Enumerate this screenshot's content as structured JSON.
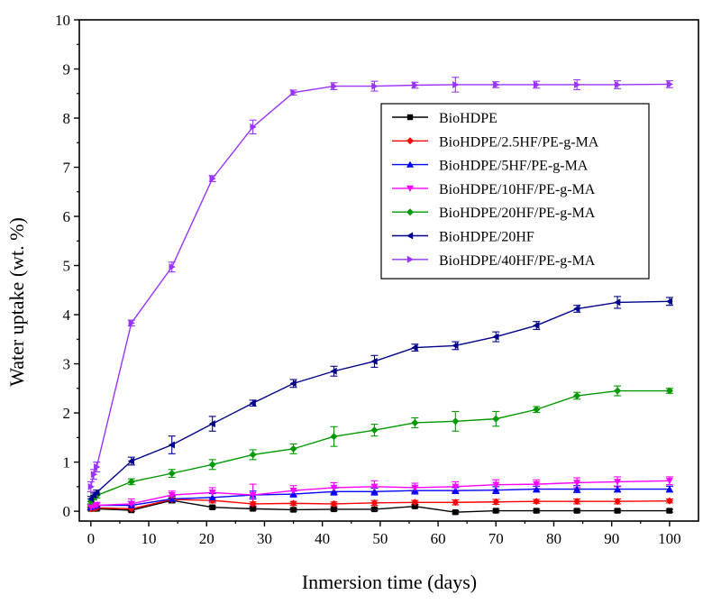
{
  "chart_data": {
    "type": "line",
    "xlabel": "Inmersion time (days)",
    "ylabel": "Water uptake (wt. %)",
    "xlim": [
      -2,
      105
    ],
    "ylim": [
      -0.2,
      10
    ],
    "xticks": [
      0,
      10,
      20,
      30,
      40,
      50,
      60,
      70,
      80,
      90,
      100
    ],
    "yticks": [
      0,
      1,
      2,
      3,
      4,
      5,
      6,
      7,
      8,
      9,
      10
    ],
    "legend_position": "center-right",
    "grid": false,
    "error_bars": true,
    "series": [
      {
        "name": "BioHDPE",
        "color": "#000000",
        "marker": "square",
        "x": [
          0,
          0.5,
          1,
          7,
          14,
          21,
          28,
          35,
          42,
          49,
          56,
          63,
          70,
          77,
          84,
          91,
          100
        ],
        "y": [
          0.05,
          0.05,
          0.05,
          0.02,
          0.22,
          0.08,
          0.05,
          0.03,
          0.04,
          0.04,
          0.1,
          -0.02,
          0.01,
          0.01,
          0.01,
          0.01,
          0.01
        ],
        "err": [
          0.03,
          0.03,
          0.03,
          0.03,
          0.05,
          0.03,
          0.03,
          0.03,
          0.03,
          0.03,
          0.03,
          0.03,
          0.03,
          0.03,
          0.03,
          0.03,
          0.03
        ]
      },
      {
        "name": "BioHDPE/2.5HF/PE-g-MA",
        "color": "#ff0000",
        "marker": "diamond",
        "x": [
          0,
          0.5,
          1,
          7,
          14,
          21,
          28,
          35,
          42,
          49,
          56,
          63,
          70,
          77,
          84,
          91,
          100
        ],
        "y": [
          0.05,
          0.06,
          0.07,
          0.05,
          0.24,
          0.22,
          0.15,
          0.16,
          0.15,
          0.17,
          0.18,
          0.18,
          0.19,
          0.2,
          0.2,
          0.2,
          0.21
        ],
        "err": [
          0.03,
          0.03,
          0.03,
          0.05,
          0.06,
          0.05,
          0.04,
          0.04,
          0.04,
          0.05,
          0.04,
          0.05,
          0.05,
          0.04,
          0.05,
          0.05,
          0.04
        ]
      },
      {
        "name": "BioHDPE/5HF/PE-g-MA",
        "color": "#0000ff",
        "marker": "triangle-up",
        "x": [
          0,
          0.5,
          1,
          7,
          14,
          21,
          28,
          35,
          42,
          49,
          56,
          63,
          70,
          77,
          84,
          91,
          100
        ],
        "y": [
          0.08,
          0.1,
          0.12,
          0.12,
          0.25,
          0.28,
          0.33,
          0.35,
          0.4,
          0.4,
          0.42,
          0.42,
          0.43,
          0.45,
          0.45,
          0.45,
          0.45
        ],
        "err": [
          0.05,
          0.05,
          0.05,
          0.08,
          0.06,
          0.08,
          0.08,
          0.06,
          0.07,
          0.07,
          0.07,
          0.06,
          0.07,
          0.06,
          0.07,
          0.06,
          0.06
        ]
      },
      {
        "name": "BioHDPE/10HF/PE-g-MA",
        "color": "#ff00ff",
        "marker": "triangle-down",
        "x": [
          0,
          0.5,
          1,
          7,
          14,
          21,
          28,
          35,
          42,
          49,
          56,
          63,
          70,
          77,
          84,
          91,
          100
        ],
        "y": [
          0.08,
          0.1,
          0.12,
          0.15,
          0.33,
          0.38,
          0.33,
          0.42,
          0.48,
          0.5,
          0.48,
          0.5,
          0.54,
          0.55,
          0.58,
          0.6,
          0.62
        ],
        "err": [
          0.06,
          0.06,
          0.06,
          0.1,
          0.08,
          0.1,
          0.22,
          0.1,
          0.1,
          0.12,
          0.09,
          0.1,
          0.1,
          0.09,
          0.1,
          0.1,
          0.08
        ]
      },
      {
        "name": "BioHDPE/20HF/PE-g-MA",
        "color": "#009900",
        "marker": "diamond",
        "x": [
          0,
          0.5,
          1,
          7,
          14,
          21,
          28,
          35,
          42,
          49,
          56,
          63,
          70,
          77,
          84,
          91,
          100
        ],
        "y": [
          0.2,
          0.28,
          0.32,
          0.6,
          0.77,
          0.95,
          1.15,
          1.27,
          1.52,
          1.65,
          1.8,
          1.83,
          1.88,
          2.07,
          2.35,
          2.45,
          2.45
        ],
        "err": [
          0.05,
          0.05,
          0.05,
          0.06,
          0.08,
          0.1,
          0.1,
          0.1,
          0.2,
          0.12,
          0.1,
          0.2,
          0.15,
          0.06,
          0.07,
          0.1,
          0.05
        ]
      },
      {
        "name": "BioHDPE/20HF",
        "color": "#00008b",
        "marker": "triangle-left",
        "x": [
          0,
          0.5,
          1,
          7,
          14,
          21,
          28,
          35,
          42,
          49,
          56,
          63,
          70,
          77,
          84,
          91,
          100
        ],
        "y": [
          0.25,
          0.32,
          0.38,
          1.02,
          1.35,
          1.78,
          2.2,
          2.6,
          2.85,
          3.05,
          3.33,
          3.37,
          3.55,
          3.78,
          4.12,
          4.25,
          4.27
        ],
        "err": [
          0.05,
          0.05,
          0.05,
          0.08,
          0.18,
          0.15,
          0.06,
          0.08,
          0.1,
          0.12,
          0.07,
          0.08,
          0.1,
          0.08,
          0.07,
          0.12,
          0.08
        ]
      },
      {
        "name": "BioHDPE/40HF/PE-g-MA",
        "color": "#9933ff",
        "marker": "triangle-right",
        "x": [
          0,
          0.5,
          1,
          7,
          14,
          21,
          28,
          35,
          42,
          49,
          56,
          63,
          70,
          77,
          84,
          91,
          100
        ],
        "y": [
          0.5,
          0.75,
          0.9,
          3.83,
          4.97,
          6.77,
          7.82,
          8.52,
          8.65,
          8.65,
          8.67,
          8.68,
          8.68,
          8.68,
          8.68,
          8.68,
          8.69
        ],
        "err": [
          0.1,
          0.1,
          0.1,
          0.06,
          0.1,
          0.06,
          0.14,
          0.05,
          0.07,
          0.1,
          0.06,
          0.15,
          0.06,
          0.07,
          0.1,
          0.08,
          0.07
        ]
      }
    ]
  }
}
